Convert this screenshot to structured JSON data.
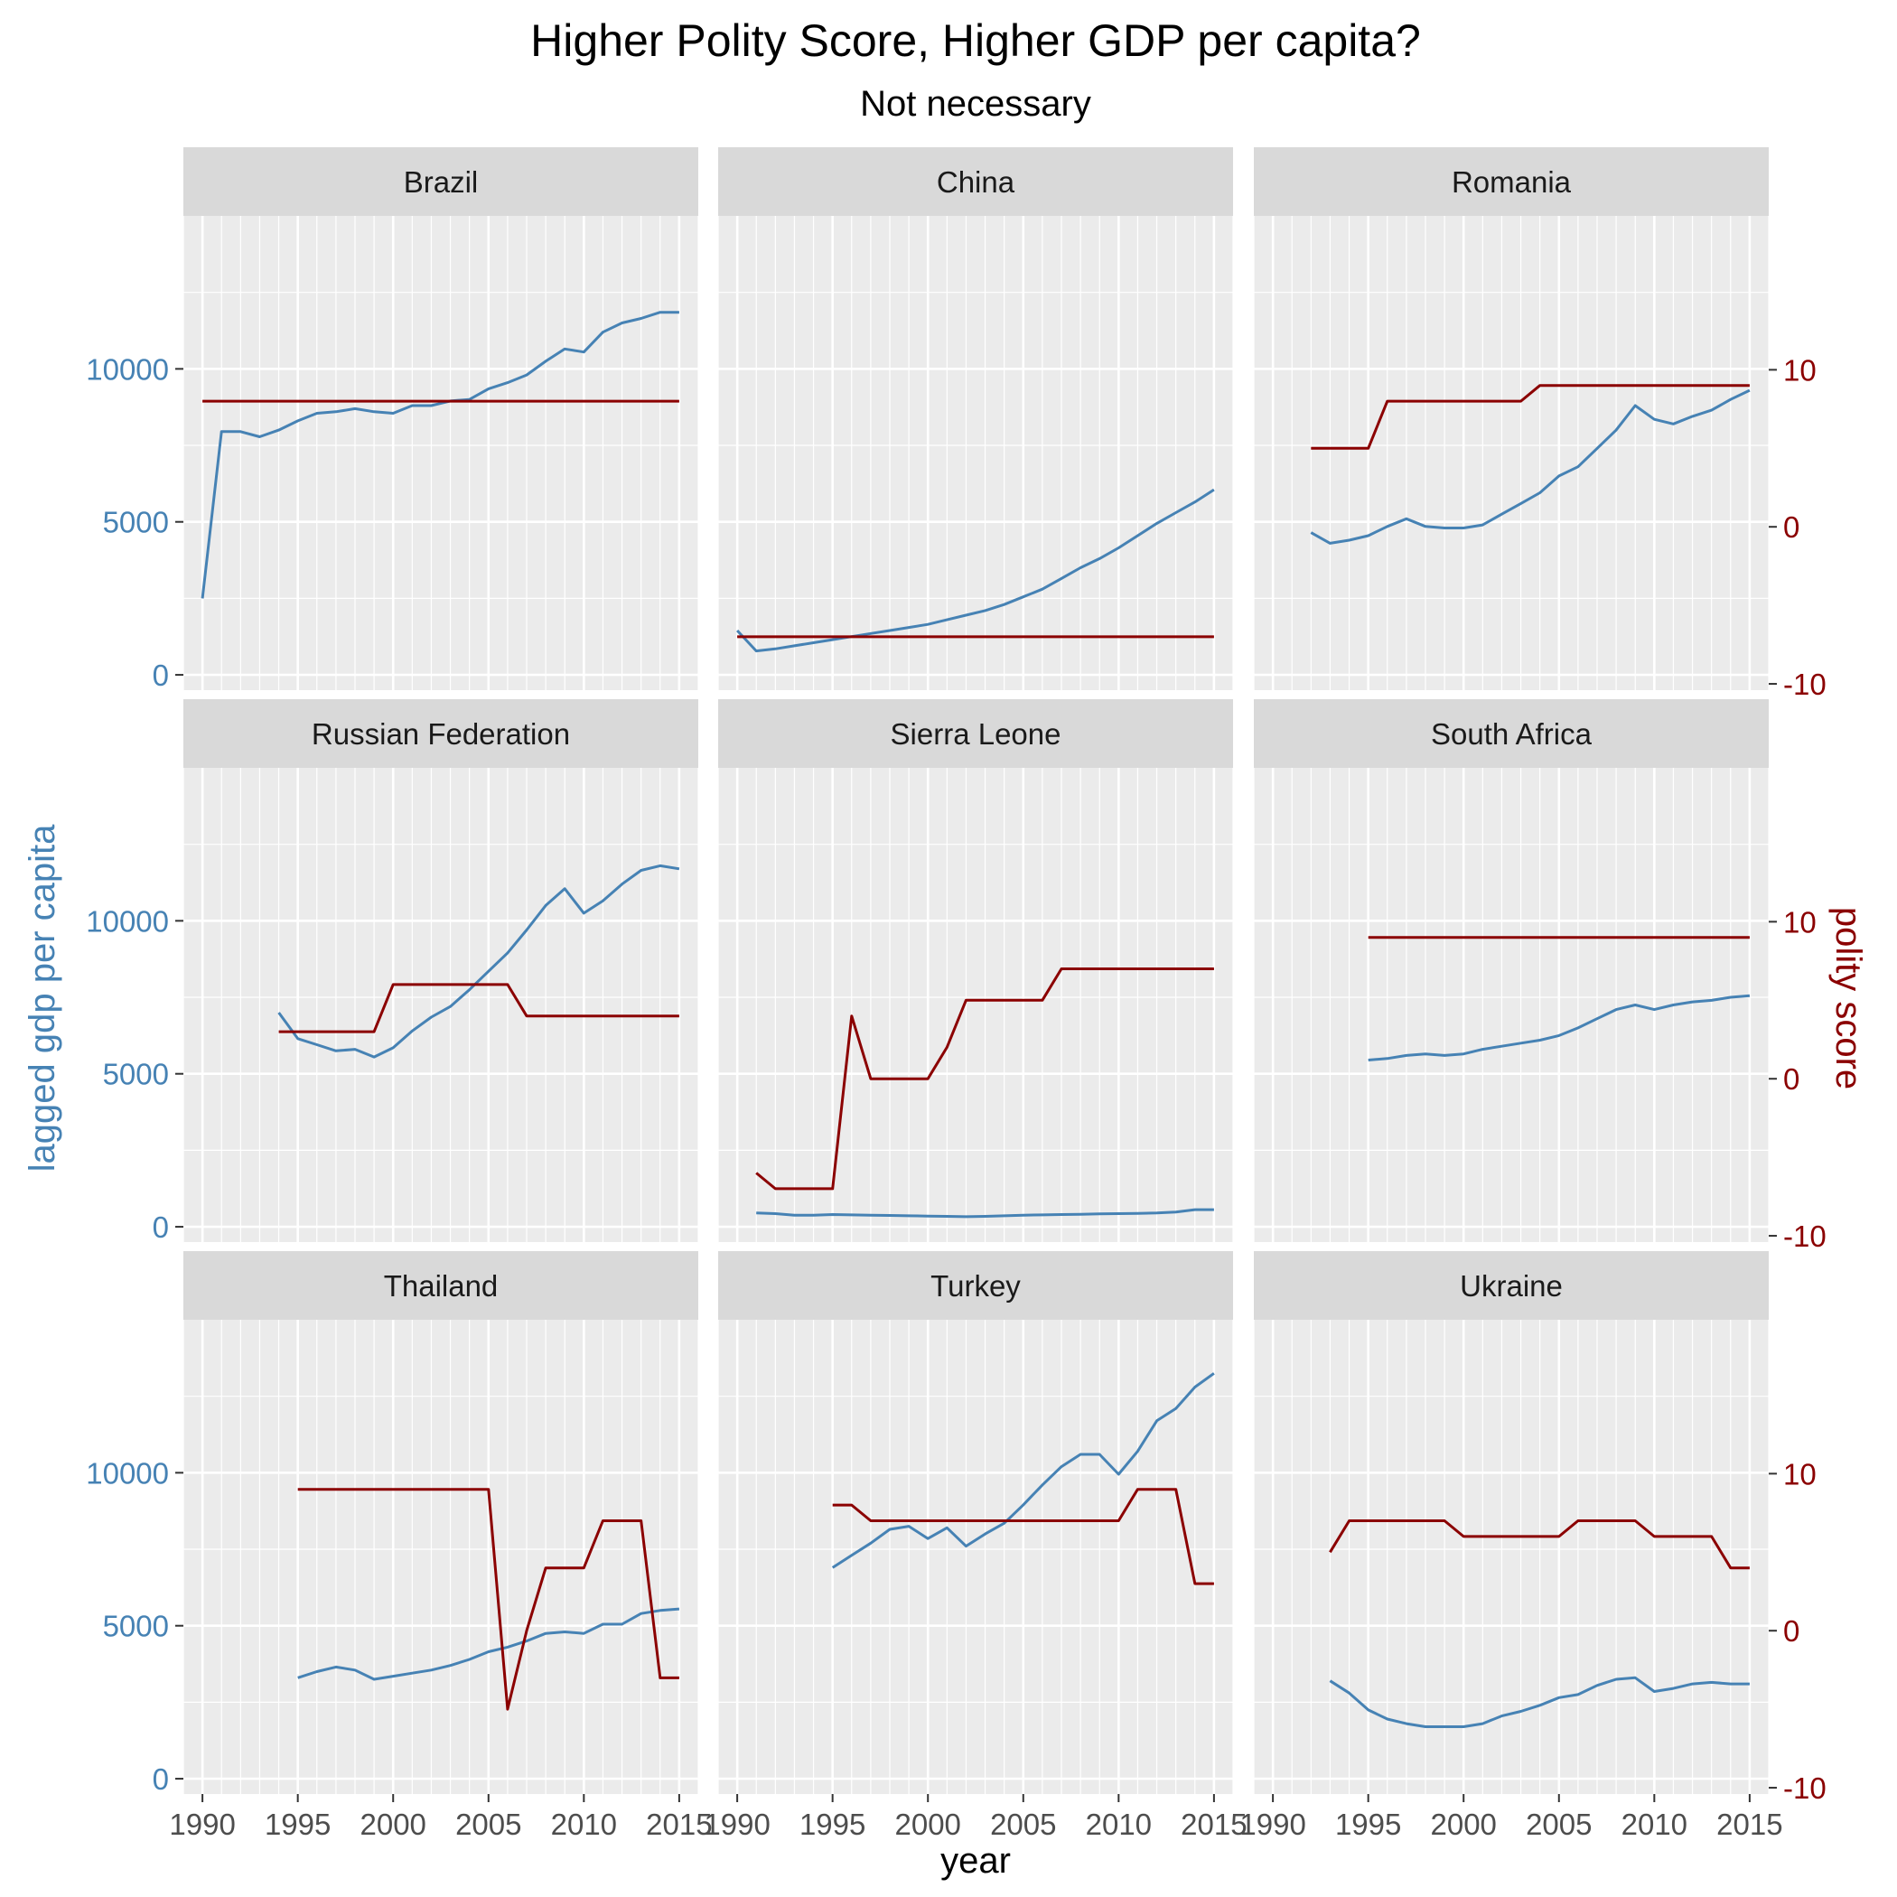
{
  "chart_data": {
    "type": "line",
    "title": "Higher Polity Score, Higher GDP per capita?",
    "subtitle": "Not necessary",
    "xlabel": "year",
    "ylabel_left": "lagged gdp per capita",
    "ylabel_right": "polity score",
    "xlim": [
      1989,
      2016
    ],
    "x_ticks": [
      "1990",
      "1995",
      "2000",
      "2005",
      "2010",
      "2015"
    ],
    "ylim_left": [
      -500,
      15000
    ],
    "y_ticks_left": [
      "0",
      "5000",
      "10000"
    ],
    "ylim_right": [
      -10.4,
      19.8
    ],
    "y_ticks_right": [
      "-10",
      "0",
      "10"
    ],
    "grid": true,
    "colors": {
      "gdp": "#4682B4",
      "polity": "#8B0000",
      "panel_bg": "#EBEBEB",
      "strip_bg": "#D9D9D9",
      "grid": "#FFFFFF"
    },
    "panels": [
      {
        "name": "Brazil",
        "gdp": [
          [
            1990,
            2500
          ],
          [
            1991,
            7950
          ],
          [
            1992,
            7950
          ],
          [
            1993,
            7780
          ],
          [
            1994,
            8000
          ],
          [
            1995,
            8300
          ],
          [
            1996,
            8550
          ],
          [
            1997,
            8600
          ],
          [
            1998,
            8700
          ],
          [
            1999,
            8600
          ],
          [
            2000,
            8550
          ],
          [
            2001,
            8800
          ],
          [
            2002,
            8800
          ],
          [
            2003,
            8950
          ],
          [
            2004,
            9000
          ],
          [
            2005,
            9350
          ],
          [
            2006,
            9550
          ],
          [
            2007,
            9800
          ],
          [
            2008,
            10250
          ],
          [
            2009,
            10650
          ],
          [
            2010,
            10550
          ],
          [
            2011,
            11200
          ],
          [
            2012,
            11500
          ],
          [
            2013,
            11650
          ],
          [
            2014,
            11850
          ],
          [
            2015,
            11850
          ]
        ],
        "polity": [
          [
            1990,
            8
          ],
          [
            2015,
            8
          ]
        ]
      },
      {
        "name": "China",
        "gdp": [
          [
            1990,
            1450
          ],
          [
            1991,
            780
          ],
          [
            1992,
            850
          ],
          [
            1993,
            950
          ],
          [
            1994,
            1050
          ],
          [
            1995,
            1150
          ],
          [
            1996,
            1250
          ],
          [
            1997,
            1350
          ],
          [
            1998,
            1450
          ],
          [
            1999,
            1550
          ],
          [
            2000,
            1650
          ],
          [
            2001,
            1800
          ],
          [
            2002,
            1950
          ],
          [
            2003,
            2100
          ],
          [
            2004,
            2300
          ],
          [
            2005,
            2550
          ],
          [
            2006,
            2800
          ],
          [
            2007,
            3150
          ],
          [
            2008,
            3500
          ],
          [
            2009,
            3800
          ],
          [
            2010,
            4150
          ],
          [
            2011,
            4550
          ],
          [
            2012,
            4950
          ],
          [
            2013,
            5300
          ],
          [
            2014,
            5650
          ],
          [
            2015,
            6050
          ]
        ],
        "polity": [
          [
            1990,
            -7
          ],
          [
            2015,
            -7
          ]
        ]
      },
      {
        "name": "Romania",
        "gdp": [
          [
            1992,
            4650
          ],
          [
            1993,
            4300
          ],
          [
            1994,
            4400
          ],
          [
            1995,
            4550
          ],
          [
            1996,
            4850
          ],
          [
            1997,
            5100
          ],
          [
            1998,
            4850
          ],
          [
            1999,
            4800
          ],
          [
            2000,
            4800
          ],
          [
            2001,
            4900
          ],
          [
            2002,
            5250
          ],
          [
            2003,
            5600
          ],
          [
            2004,
            5950
          ],
          [
            2005,
            6500
          ],
          [
            2006,
            6800
          ],
          [
            2007,
            7400
          ],
          [
            2008,
            8000
          ],
          [
            2009,
            8800
          ],
          [
            2010,
            8350
          ],
          [
            2011,
            8200
          ],
          [
            2012,
            8450
          ],
          [
            2013,
            8650
          ],
          [
            2014,
            9000
          ],
          [
            2015,
            9300
          ]
        ],
        "polity": [
          [
            1992,
            5
          ],
          [
            1995,
            5
          ],
          [
            1996,
            8
          ],
          [
            2003,
            8
          ],
          [
            2004,
            9
          ],
          [
            2015,
            9
          ]
        ]
      },
      {
        "name": "Russian Federation",
        "gdp": [
          [
            1994,
            7000
          ],
          [
            1995,
            6150
          ],
          [
            1996,
            5950
          ],
          [
            1997,
            5750
          ],
          [
            1998,
            5800
          ],
          [
            1999,
            5550
          ],
          [
            2000,
            5850
          ],
          [
            2001,
            6400
          ],
          [
            2002,
            6850
          ],
          [
            2003,
            7200
          ],
          [
            2004,
            7750
          ],
          [
            2005,
            8350
          ],
          [
            2006,
            8950
          ],
          [
            2007,
            9700
          ],
          [
            2008,
            10500
          ],
          [
            2009,
            11050
          ],
          [
            2010,
            10250
          ],
          [
            2011,
            10650
          ],
          [
            2012,
            11200
          ],
          [
            2013,
            11650
          ],
          [
            2014,
            11800
          ],
          [
            2015,
            11700
          ]
        ],
        "polity": [
          [
            1994,
            3
          ],
          [
            1999,
            3
          ],
          [
            2000,
            6
          ],
          [
            2006,
            6
          ],
          [
            2007,
            4
          ],
          [
            2015,
            4
          ]
        ]
      },
      {
        "name": "Sierra Leone",
        "gdp": [
          [
            1991,
            450
          ],
          [
            1992,
            430
          ],
          [
            1993,
            380
          ],
          [
            1994,
            380
          ],
          [
            1995,
            400
          ],
          [
            1996,
            390
          ],
          [
            1997,
            380
          ],
          [
            1998,
            370
          ],
          [
            1999,
            360
          ],
          [
            2000,
            350
          ],
          [
            2001,
            340
          ],
          [
            2002,
            330
          ],
          [
            2003,
            340
          ],
          [
            2004,
            360
          ],
          [
            2005,
            380
          ],
          [
            2006,
            390
          ],
          [
            2007,
            400
          ],
          [
            2008,
            410
          ],
          [
            2009,
            420
          ],
          [
            2010,
            430
          ],
          [
            2011,
            440
          ],
          [
            2012,
            450
          ],
          [
            2013,
            480
          ],
          [
            2014,
            560
          ],
          [
            2015,
            560
          ]
        ],
        "polity": [
          [
            1991,
            -6
          ],
          [
            1992,
            -7
          ],
          [
            1995,
            -7
          ],
          [
            1996,
            4
          ],
          [
            1997,
            0
          ],
          [
            2000,
            0
          ],
          [
            2001,
            2
          ],
          [
            2002,
            5
          ],
          [
            2006,
            5
          ],
          [
            2007,
            7
          ],
          [
            2015,
            7
          ]
        ]
      },
      {
        "name": "South Africa",
        "gdp": [
          [
            1995,
            5450
          ],
          [
            1996,
            5500
          ],
          [
            1997,
            5600
          ],
          [
            1998,
            5650
          ],
          [
            1999,
            5600
          ],
          [
            2000,
            5650
          ],
          [
            2001,
            5800
          ],
          [
            2002,
            5900
          ],
          [
            2003,
            6000
          ],
          [
            2004,
            6100
          ],
          [
            2005,
            6250
          ],
          [
            2006,
            6500
          ],
          [
            2007,
            6800
          ],
          [
            2008,
            7100
          ],
          [
            2009,
            7250
          ],
          [
            2010,
            7100
          ],
          [
            2011,
            7250
          ],
          [
            2012,
            7350
          ],
          [
            2013,
            7400
          ],
          [
            2014,
            7500
          ],
          [
            2015,
            7550
          ]
        ],
        "polity": [
          [
            1995,
            9
          ],
          [
            2015,
            9
          ]
        ]
      },
      {
        "name": "Thailand",
        "gdp": [
          [
            1995,
            3300
          ],
          [
            1996,
            3500
          ],
          [
            1997,
            3650
          ],
          [
            1998,
            3550
          ],
          [
            1999,
            3250
          ],
          [
            2000,
            3350
          ],
          [
            2001,
            3450
          ],
          [
            2002,
            3550
          ],
          [
            2003,
            3700
          ],
          [
            2004,
            3900
          ],
          [
            2005,
            4150
          ],
          [
            2006,
            4300
          ],
          [
            2007,
            4500
          ],
          [
            2008,
            4750
          ],
          [
            2009,
            4800
          ],
          [
            2010,
            4750
          ],
          [
            2011,
            5050
          ],
          [
            2012,
            5050
          ],
          [
            2013,
            5400
          ],
          [
            2014,
            5500
          ],
          [
            2015,
            5550
          ]
        ],
        "polity": [
          [
            1995,
            9
          ],
          [
            2005,
            9
          ],
          [
            2006,
            -5
          ],
          [
            2007,
            0
          ],
          [
            2008,
            4
          ],
          [
            2010,
            4
          ],
          [
            2011,
            7
          ],
          [
            2013,
            7
          ],
          [
            2014,
            -3
          ],
          [
            2015,
            -3
          ]
        ]
      },
      {
        "name": "Turkey",
        "gdp": [
          [
            1995,
            6900
          ],
          [
            1996,
            7300
          ],
          [
            1997,
            7700
          ],
          [
            1998,
            8150
          ],
          [
            1999,
            8250
          ],
          [
            2000,
            7850
          ],
          [
            2001,
            8200
          ],
          [
            2002,
            7600
          ],
          [
            2003,
            8000
          ],
          [
            2004,
            8350
          ],
          [
            2005,
            8950
          ],
          [
            2006,
            9600
          ],
          [
            2007,
            10200
          ],
          [
            2008,
            10600
          ],
          [
            2009,
            10600
          ],
          [
            2010,
            9950
          ],
          [
            2011,
            10700
          ],
          [
            2012,
            11700
          ],
          [
            2013,
            12100
          ],
          [
            2014,
            12800
          ],
          [
            2015,
            13250
          ]
        ],
        "polity": [
          [
            1995,
            8
          ],
          [
            1996,
            8
          ],
          [
            1997,
            7
          ],
          [
            2010,
            7
          ],
          [
            2011,
            9
          ],
          [
            2013,
            9
          ],
          [
            2014,
            3
          ],
          [
            2015,
            3
          ]
        ]
      },
      {
        "name": "Ukraine",
        "gdp": [
          [
            1993,
            3200
          ],
          [
            1994,
            2800
          ],
          [
            1995,
            2250
          ],
          [
            1996,
            1950
          ],
          [
            1997,
            1800
          ],
          [
            1998,
            1700
          ],
          [
            1999,
            1700
          ],
          [
            2000,
            1700
          ],
          [
            2001,
            1800
          ],
          [
            2002,
            2050
          ],
          [
            2003,
            2200
          ],
          [
            2004,
            2400
          ],
          [
            2005,
            2650
          ],
          [
            2006,
            2750
          ],
          [
            2007,
            3050
          ],
          [
            2008,
            3250
          ],
          [
            2009,
            3300
          ],
          [
            2010,
            2850
          ],
          [
            2011,
            2950
          ],
          [
            2012,
            3100
          ],
          [
            2013,
            3150
          ],
          [
            2014,
            3100
          ],
          [
            2015,
            3100
          ]
        ],
        "polity": [
          [
            1993,
            5
          ],
          [
            1994,
            7
          ],
          [
            1999,
            7
          ],
          [
            2000,
            6
          ],
          [
            2005,
            6
          ],
          [
            2006,
            7
          ],
          [
            2009,
            7
          ],
          [
            2010,
            6
          ],
          [
            2013,
            6
          ],
          [
            2014,
            4
          ],
          [
            2015,
            4
          ]
        ]
      }
    ]
  }
}
